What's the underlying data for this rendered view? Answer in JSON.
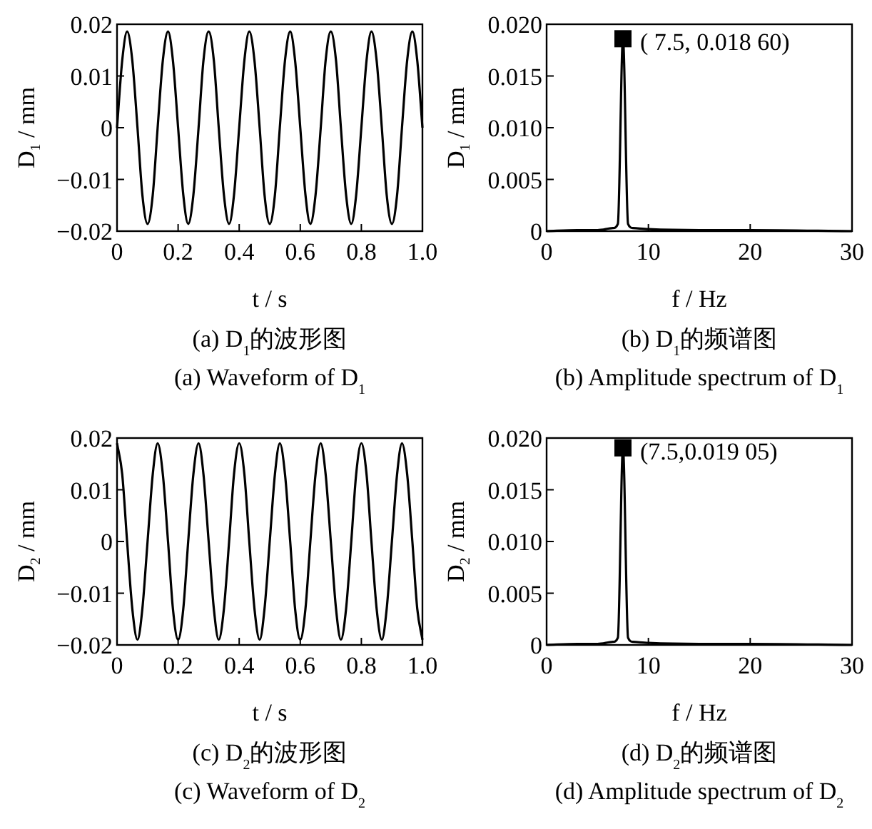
{
  "chart_data": [
    {
      "type": "line",
      "title": "(a)  D$_{1}$的波形图",
      "subtitle": "(a)  Waveform of D$_{1}$",
      "xlabel": "t / s",
      "ylabel": "D$_{1}$ / mm",
      "xlim": [
        0,
        1
      ],
      "ylim": [
        -0.02,
        0.02
      ],
      "xticks": [
        0,
        0.2,
        0.4,
        0.6,
        0.8,
        {
          "value": 1,
          "label": "1.0"
        }
      ],
      "yticks": [
        {
          "value": -0.02,
          "label": "−0.02"
        },
        {
          "value": -0.01,
          "label": "−0.01"
        },
        0,
        0.01,
        0.02
      ],
      "grid": false,
      "marker": "none",
      "line_style": "solid",
      "series": [
        {
          "color": "#000000",
          "x": [
            0,
            0.017,
            0.033,
            0.05,
            0.067,
            0.083,
            0.1,
            0.117,
            0.133,
            0.15,
            0.167,
            0.183,
            0.2,
            0.217,
            0.233,
            0.25,
            0.267,
            0.283,
            0.3,
            0.317,
            0.333,
            0.35,
            0.367,
            0.383,
            0.4,
            0.417,
            0.433,
            0.45,
            0.467,
            0.483,
            0.5,
            0.517,
            0.533,
            0.55,
            0.567,
            0.583,
            0.6,
            0.617,
            0.633,
            0.65,
            0.667,
            0.683,
            0.7,
            0.717,
            0.733,
            0.75,
            0.767,
            0.783,
            0.8,
            0.817,
            0.833,
            0.85,
            0.867,
            0.883,
            0.9,
            0.917,
            0.933,
            0.95,
            0.967,
            0.983,
            1
          ],
          "values": [
            0,
            0.013,
            0.0186,
            0.013,
            0,
            -0.013,
            -0.0186,
            -0.013,
            0,
            0.013,
            0.0186,
            0.013,
            0,
            -0.013,
            -0.0186,
            -0.013,
            0,
            0.013,
            0.0186,
            0.013,
            0,
            -0.013,
            -0.0186,
            -0.013,
            0,
            0.013,
            0.0186,
            0.013,
            0,
            -0.013,
            -0.0186,
            -0.013,
            0,
            0.013,
            0.0186,
            0.013,
            0,
            -0.013,
            -0.0186,
            -0.013,
            0,
            0.013,
            0.0186,
            0.013,
            0,
            -0.013,
            -0.0186,
            -0.013,
            0,
            0.013,
            0.0186,
            0.013,
            0,
            -0.013,
            -0.0186,
            -0.013,
            0,
            0.013,
            0.0186,
            0.013,
            0
          ]
        }
      ]
    },
    {
      "type": "line",
      "title": "(b)  D$_{1}$的频谱图",
      "subtitle": "(b)  Amplitude spectrum of D$_{1}$",
      "xlabel": "f / Hz",
      "ylabel": "D$_{1}$ / mm",
      "xlim": [
        0,
        30
      ],
      "ylim": [
        0,
        0.02
      ],
      "xticks": [
        0,
        10,
        20,
        30
      ],
      "yticks": [
        0,
        {
          "value": 0.005,
          "label": "0.005"
        },
        {
          "value": 0.01,
          "label": "0.010"
        },
        {
          "value": 0.015,
          "label": "0.015"
        },
        {
          "value": 0.02,
          "label": "0.020"
        }
      ],
      "grid": false,
      "marker": "none",
      "line_style": "solid",
      "annotations": [
        {
          "text": "( 7.5, 0.018 60)",
          "x": 7.5,
          "y": 0.0186
        }
      ],
      "series": [
        {
          "color": "#000000",
          "x": [
            0,
            3,
            5,
            6.5,
            7,
            7.5,
            8,
            8.5,
            10,
            15,
            20,
            30
          ],
          "values": [
            0,
            0.0001,
            0.0001,
            0.0003,
            0.0007,
            0.0186,
            0.0007,
            0.0003,
            0.0002,
            0.0001,
            0.0001,
            0
          ]
        },
        {
          "type": "scatter",
          "marker": "square",
          "color": "#000000",
          "x": [
            7.5
          ],
          "values": [
            0.0186
          ]
        }
      ]
    },
    {
      "type": "line",
      "title": "(c)  D$_{2}$的波形图",
      "subtitle": "(c)  Waveform of D$_{2}$",
      "xlabel": "t / s",
      "ylabel": "D$_{2}$ / mm",
      "xlim": [
        0,
        1
      ],
      "ylim": [
        -0.02,
        0.02
      ],
      "xticks": [
        0,
        0.2,
        0.4,
        0.6,
        0.8,
        {
          "value": 1,
          "label": "1.0"
        }
      ],
      "yticks": [
        {
          "value": -0.02,
          "label": "−0.02"
        },
        {
          "value": -0.01,
          "label": "−0.01"
        },
        0,
        0.01,
        0.02
      ],
      "grid": false,
      "marker": "none",
      "line_style": "solid",
      "series": [
        {
          "color": "#000000",
          "x": [
            0,
            0.017,
            0.033,
            0.05,
            0.067,
            0.083,
            0.1,
            0.117,
            0.133,
            0.15,
            0.167,
            0.183,
            0.2,
            0.217,
            0.233,
            0.25,
            0.267,
            0.283,
            0.3,
            0.317,
            0.333,
            0.35,
            0.367,
            0.383,
            0.4,
            0.417,
            0.433,
            0.45,
            0.467,
            0.483,
            0.5,
            0.517,
            0.533,
            0.55,
            0.567,
            0.583,
            0.6,
            0.617,
            0.633,
            0.65,
            0.667,
            0.683,
            0.7,
            0.717,
            0.733,
            0.75,
            0.767,
            0.783,
            0.8,
            0.817,
            0.833,
            0.85,
            0.867,
            0.883,
            0.9,
            0.917,
            0.933,
            0.95,
            0.967,
            0.983,
            1
          ],
          "values": [
            0.019,
            0.013,
            0,
            -0.013,
            -0.019,
            -0.013,
            0,
            0.013,
            0.019,
            0.013,
            0,
            -0.013,
            -0.019,
            -0.013,
            0,
            0.013,
            0.019,
            0.013,
            0,
            -0.013,
            -0.019,
            -0.013,
            0,
            0.013,
            0.019,
            0.013,
            0,
            -0.013,
            -0.019,
            -0.013,
            0,
            0.013,
            0.019,
            0.013,
            0,
            -0.013,
            -0.019,
            -0.013,
            0,
            0.013,
            0.019,
            0.013,
            0,
            -0.013,
            -0.019,
            -0.013,
            0,
            0.013,
            0.019,
            0.013,
            0,
            -0.013,
            -0.019,
            -0.013,
            0,
            0.013,
            0.019,
            0.013,
            0,
            -0.013,
            -0.019
          ]
        }
      ]
    },
    {
      "type": "line",
      "title": "(d)  D$_{2}$的频谱图",
      "subtitle": "(d)  Amplitude spectrum of D$_{2}$",
      "xlabel": "f / Hz",
      "ylabel": "D$_{2}$ / mm",
      "xlim": [
        0,
        30
      ],
      "ylim": [
        0,
        0.02
      ],
      "xticks": [
        0,
        10,
        20,
        30
      ],
      "yticks": [
        0,
        {
          "value": 0.005,
          "label": "0.005"
        },
        {
          "value": 0.01,
          "label": "0.010"
        },
        {
          "value": 0.015,
          "label": "0.015"
        },
        {
          "value": 0.02,
          "label": "0.020"
        }
      ],
      "grid": false,
      "marker": "none",
      "line_style": "solid",
      "annotations": [
        {
          "text": "(7.5,0.019 05)",
          "x": 7.5,
          "y": 0.01905
        }
      ],
      "series": [
        {
          "color": "#000000",
          "x": [
            0,
            3,
            5,
            6.5,
            7,
            7.5,
            8,
            8.5,
            10,
            15,
            20,
            30
          ],
          "values": [
            0,
            0.0001,
            0.0001,
            0.0003,
            0.0007,
            0.01905,
            0.0007,
            0.0003,
            0.0002,
            0.0001,
            0.0001,
            0
          ]
        },
        {
          "type": "scatter",
          "marker": "square",
          "color": "#000000",
          "x": [
            7.5
          ],
          "values": [
            0.01905
          ]
        }
      ]
    }
  ]
}
